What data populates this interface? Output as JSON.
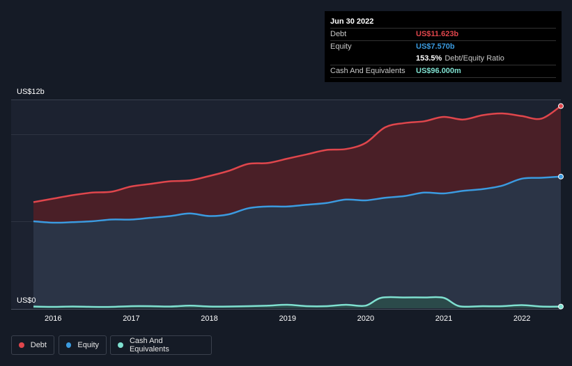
{
  "tooltip": {
    "date": "Jun 30 2022",
    "rows": [
      {
        "label": "Debt",
        "value": "US$11.623b",
        "color": "#e0464c"
      },
      {
        "label": "Equity",
        "value": "US$7.570b",
        "color": "#3b9be0"
      },
      {
        "label": "",
        "value": "153.5%",
        "suffix": "Debt/Equity Ratio",
        "color": "#ffffff"
      },
      {
        "label": "Cash And Equivalents",
        "value": "US$96.000m",
        "color": "#7fe0d0"
      }
    ]
  },
  "legend": [
    {
      "label": "Debt",
      "color": "#e0464c"
    },
    {
      "label": "Equity",
      "color": "#3b9be0"
    },
    {
      "label": "Cash And Equivalents",
      "color": "#7fe0d0"
    }
  ],
  "chart_data": {
    "type": "area",
    "title": "",
    "xlabel": "",
    "ylabel": "",
    "y_axis_labels": [
      "US$12b",
      "US$0"
    ],
    "ylim": [
      0,
      12
    ],
    "xlim": [
      2015.75,
      2022.5
    ],
    "x_ticks": [
      2016,
      2017,
      2018,
      2019,
      2020,
      2021,
      2022
    ],
    "x_tick_labels": [
      "2016",
      "2017",
      "2018",
      "2019",
      "2020",
      "2021",
      "2022"
    ],
    "units": "US$ billions",
    "series": [
      {
        "name": "Debt",
        "color": "#e0464c",
        "fill": "#4a1f27",
        "points": [
          [
            2015.75,
            6.1
          ],
          [
            2016.0,
            6.3
          ],
          [
            2016.25,
            6.5
          ],
          [
            2016.5,
            6.65
          ],
          [
            2016.75,
            6.7
          ],
          [
            2017.0,
            7.0
          ],
          [
            2017.25,
            7.15
          ],
          [
            2017.5,
            7.3
          ],
          [
            2017.75,
            7.35
          ],
          [
            2018.0,
            7.6
          ],
          [
            2018.25,
            7.9
          ],
          [
            2018.5,
            8.3
          ],
          [
            2018.75,
            8.35
          ],
          [
            2019.0,
            8.6
          ],
          [
            2019.25,
            8.85
          ],
          [
            2019.5,
            9.1
          ],
          [
            2019.75,
            9.15
          ],
          [
            2020.0,
            9.5
          ],
          [
            2020.25,
            10.4
          ],
          [
            2020.5,
            10.65
          ],
          [
            2020.75,
            10.75
          ],
          [
            2021.0,
            11.0
          ],
          [
            2021.25,
            10.85
          ],
          [
            2021.5,
            11.1
          ],
          [
            2021.75,
            11.2
          ],
          [
            2022.0,
            11.05
          ],
          [
            2022.25,
            10.9
          ],
          [
            2022.5,
            11.623
          ]
        ]
      },
      {
        "name": "Equity",
        "color": "#3b9be0",
        "fill": "#2b3446",
        "points": [
          [
            2015.75,
            5.0
          ],
          [
            2016.0,
            4.92
          ],
          [
            2016.25,
            4.95
          ],
          [
            2016.5,
            5.0
          ],
          [
            2016.75,
            5.1
          ],
          [
            2017.0,
            5.1
          ],
          [
            2017.25,
            5.2
          ],
          [
            2017.5,
            5.3
          ],
          [
            2017.75,
            5.45
          ],
          [
            2018.0,
            5.3
          ],
          [
            2018.25,
            5.4
          ],
          [
            2018.5,
            5.75
          ],
          [
            2018.75,
            5.85
          ],
          [
            2019.0,
            5.85
          ],
          [
            2019.25,
            5.95
          ],
          [
            2019.5,
            6.05
          ],
          [
            2019.75,
            6.25
          ],
          [
            2020.0,
            6.2
          ],
          [
            2020.25,
            6.35
          ],
          [
            2020.5,
            6.45
          ],
          [
            2020.75,
            6.65
          ],
          [
            2021.0,
            6.6
          ],
          [
            2021.25,
            6.75
          ],
          [
            2021.5,
            6.85
          ],
          [
            2021.75,
            7.05
          ],
          [
            2022.0,
            7.45
          ],
          [
            2022.25,
            7.5
          ],
          [
            2022.5,
            7.57
          ]
        ]
      },
      {
        "name": "Cash And Equivalents",
        "color": "#7fe0d0",
        "fill": "#2b4a4a",
        "points": [
          [
            2015.75,
            0.1
          ],
          [
            2016.0,
            0.08
          ],
          [
            2016.25,
            0.1
          ],
          [
            2016.5,
            0.08
          ],
          [
            2016.75,
            0.08
          ],
          [
            2017.0,
            0.12
          ],
          [
            2017.25,
            0.12
          ],
          [
            2017.5,
            0.1
          ],
          [
            2017.75,
            0.15
          ],
          [
            2018.0,
            0.1
          ],
          [
            2018.25,
            0.1
          ],
          [
            2018.5,
            0.12
          ],
          [
            2018.75,
            0.15
          ],
          [
            2019.0,
            0.2
          ],
          [
            2019.25,
            0.12
          ],
          [
            2019.5,
            0.12
          ],
          [
            2019.75,
            0.2
          ],
          [
            2020.0,
            0.15
          ],
          [
            2020.2,
            0.6
          ],
          [
            2020.5,
            0.62
          ],
          [
            2020.75,
            0.62
          ],
          [
            2021.0,
            0.6
          ],
          [
            2021.2,
            0.12
          ],
          [
            2021.5,
            0.12
          ],
          [
            2021.75,
            0.12
          ],
          [
            2022.0,
            0.18
          ],
          [
            2022.25,
            0.1
          ],
          [
            2022.5,
            0.096
          ]
        ]
      }
    ]
  }
}
